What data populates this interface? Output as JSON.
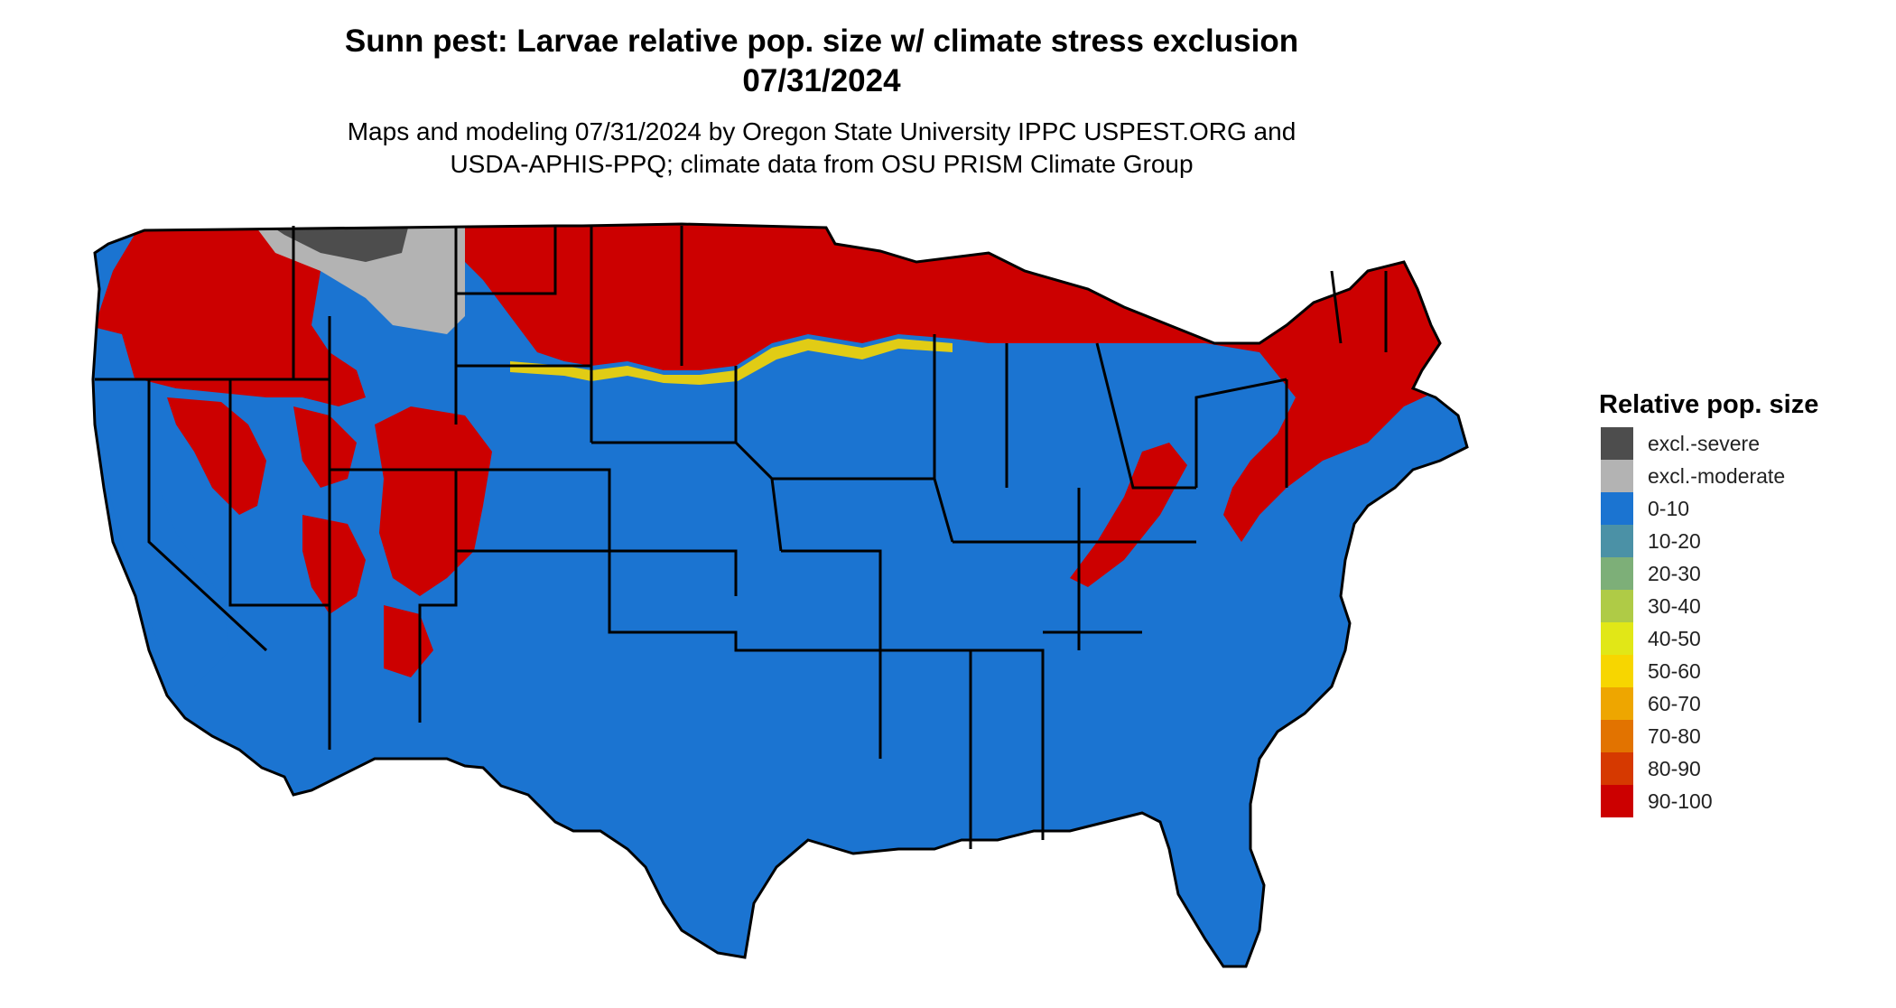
{
  "title_line1": "Sunn pest: Larvae relative pop. size w/ climate stress exclusion",
  "title_line2": "07/31/2024",
  "subtitle_line1": "Maps and modeling 07/31/2024 by Oregon State University IPPC USPEST.ORG and",
  "subtitle_line2": "USDA-APHIS-PPQ; climate data from OSU PRISM Climate Group",
  "legend": {
    "title": "Relative pop. size",
    "items": [
      {
        "label": "excl.-severe",
        "color": "#4d4d4d"
      },
      {
        "label": "excl.-moderate",
        "color": "#b3b3b3"
      },
      {
        "label": "0-10",
        "color": "#1b74d1"
      },
      {
        "label": "10-20",
        "color": "#4b91a6"
      },
      {
        "label": "20-30",
        "color": "#7daf78"
      },
      {
        "label": "30-40",
        "color": "#afcb46"
      },
      {
        "label": "40-50",
        "color": "#e1e717"
      },
      {
        "label": "50-60",
        "color": "#f7d600"
      },
      {
        "label": "60-70",
        "color": "#eea600"
      },
      {
        "label": "70-80",
        "color": "#e27300"
      },
      {
        "label": "80-90",
        "color": "#d63900"
      },
      {
        "label": "90-100",
        "color": "#cc0000"
      }
    ]
  },
  "map_colors": {
    "low": "#1b74d1",
    "high": "#cc0000",
    "mid": "#f7d600",
    "excl_severe": "#4d4d4d",
    "excl_moderate": "#b3b3b3",
    "border": "#000000"
  }
}
